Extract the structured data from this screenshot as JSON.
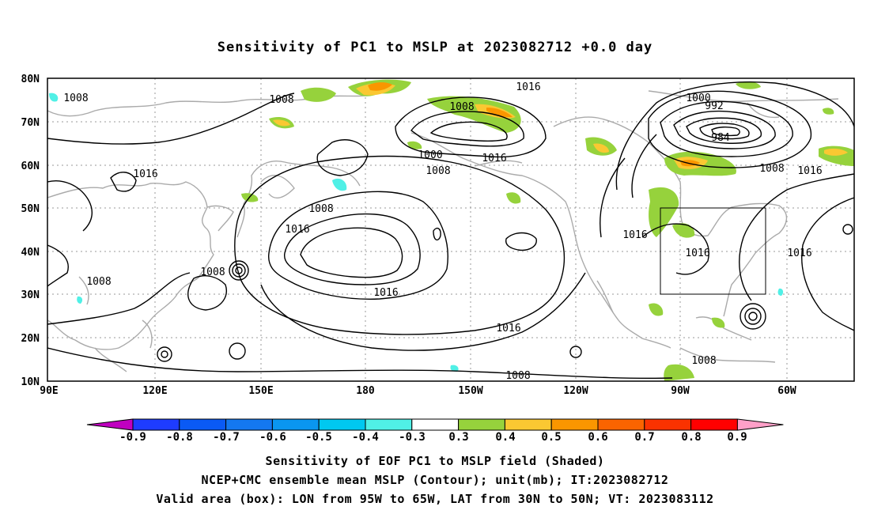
{
  "title": "Sensitivity of PC1 to MSLP at 2023082712 +0.0 day",
  "lat_labels": [
    "80N",
    "70N",
    "60N",
    "50N",
    "40N",
    "30N",
    "20N",
    "10N"
  ],
  "lon_labels": [
    "90E",
    "120E",
    "150E",
    "180",
    "150W",
    "120W",
    "90W",
    "60W"
  ],
  "contour_labels": [
    "1008",
    "1008",
    "1016",
    "1008",
    "1000",
    "992",
    "984",
    "1008",
    "1000",
    "1008",
    "1016",
    "1016",
    "1008",
    "1016",
    "1008",
    "1016",
    "1016",
    "1016",
    "1008",
    "1016",
    "1016",
    "1008",
    "1008"
  ],
  "colorbar": {
    "labels": [
      "-0.9",
      "-0.8",
      "-0.7",
      "-0.6",
      "-0.5",
      "-0.4",
      "-0.3",
      "0.3",
      "0.4",
      "0.5",
      "0.6",
      "0.7",
      "0.8",
      "0.9"
    ],
    "colors": [
      "#c000c0",
      "#1e3cff",
      "#0a5af5",
      "#1478f0",
      "#0a96f0",
      "#00c8f0",
      "#50f0e6",
      "#ffffff",
      "#96d23c",
      "#fac832",
      "#fa9600",
      "#fa6400",
      "#fa3200",
      "#ff0000",
      "#ffa0c8"
    ]
  },
  "caption_lines": [
    "Sensitivity of EOF PC1 to MSLP field (Shaded)",
    "NCEP+CMC ensemble mean MSLP (Contour); unit(mb); IT:2023082712",
    "Valid area (box): LON from 95W to 65W, LAT from 30N to 50N; VT: 2023083112"
  ]
}
